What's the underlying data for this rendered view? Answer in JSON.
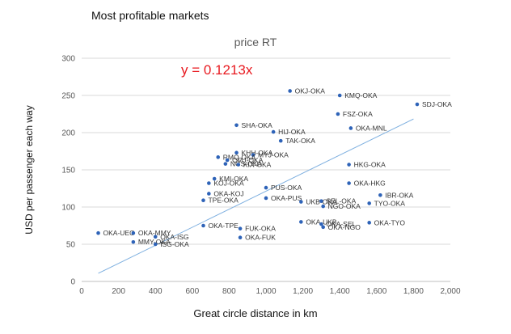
{
  "page": {
    "heading": "Most profitable markets"
  },
  "chart_data": {
    "type": "scatter",
    "title": "price RT",
    "xlabel": "Great circle distance in km",
    "ylabel": "USD per passenger each way",
    "xlim": [
      0,
      2000
    ],
    "ylim": [
      0,
      300
    ],
    "xticks": [
      "0",
      "200",
      "400",
      "600",
      "800",
      "1,000",
      "1,200",
      "1,400",
      "1,600",
      "1,800",
      "2,000"
    ],
    "yticks": [
      "0",
      "50",
      "100",
      "150",
      "200",
      "250",
      "300"
    ],
    "grid": "horizontal",
    "trendline": {
      "equation": "y = 0.1213x",
      "slope": 0.1213,
      "x_range": [
        90,
        1800
      ]
    },
    "marker_color": "#2e63b8",
    "trend_color": "#7fb0e0",
    "points": [
      {
        "label": "OKJ-OKA",
        "x": 1130,
        "y": 256
      },
      {
        "label": "KMQ-OKA",
        "x": 1400,
        "y": 250
      },
      {
        "label": "SDJ-OKA",
        "x": 1820,
        "y": 238
      },
      {
        "label": "FSZ-OKA",
        "x": 1390,
        "y": 225
      },
      {
        "label": "SHA-OKA",
        "x": 840,
        "y": 210
      },
      {
        "label": "OKA-MNL",
        "x": 1460,
        "y": 206
      },
      {
        "label": "HIJ-OKA",
        "x": 1040,
        "y": 201
      },
      {
        "label": "TAK-OKA",
        "x": 1080,
        "y": 189
      },
      {
        "label": "KHH-OKA",
        "x": 840,
        "y": 173
      },
      {
        "label": "MYJ-OKA",
        "x": 930,
        "y": 170
      },
      {
        "label": "RMQ-OKA",
        "x": 740,
        "y": 167
      },
      {
        "label": "CMJ-OKA",
        "x": 790,
        "y": 163
      },
      {
        "label": "NGS-OKA",
        "x": 780,
        "y": 158
      },
      {
        "label": "KIX-OKA",
        "x": 850,
        "y": 157
      },
      {
        "label": "HKG-OKA",
        "x": 1450,
        "y": 157
      },
      {
        "label": "KMI-OKA",
        "x": 720,
        "y": 138
      },
      {
        "label": "KOJ-OKA",
        "x": 690,
        "y": 132
      },
      {
        "label": "OKA-HKG",
        "x": 1450,
        "y": 132
      },
      {
        "label": "PUS-OKA",
        "x": 1000,
        "y": 126
      },
      {
        "label": "OKA-KOJ",
        "x": 690,
        "y": 118
      },
      {
        "label": "IBR-OKA",
        "x": 1620,
        "y": 116
      },
      {
        "label": "OKA-PUS",
        "x": 1000,
        "y": 112
      },
      {
        "label": "TPE-OKA",
        "x": 660,
        "y": 109
      },
      {
        "label": "UKB-OKA",
        "x": 1190,
        "y": 107
      },
      {
        "label": "SEL-OKA",
        "x": 1300,
        "y": 108
      },
      {
        "label": "TYO-OKA",
        "x": 1560,
        "y": 105
      },
      {
        "label": "NGO-OKA",
        "x": 1310,
        "y": 101
      },
      {
        "label": "OKA-UKB",
        "x": 1190,
        "y": 80
      },
      {
        "label": "OKA-TYO",
        "x": 1560,
        "y": 79
      },
      {
        "label": "OKA-SEL",
        "x": 1300,
        "y": 77
      },
      {
        "label": "OKA-NGO",
        "x": 1310,
        "y": 73
      },
      {
        "label": "OKA-TPE",
        "x": 660,
        "y": 75
      },
      {
        "label": "FUK-OKA",
        "x": 860,
        "y": 71
      },
      {
        "label": "OKA-FUK",
        "x": 860,
        "y": 59
      },
      {
        "label": "OKA-UEO",
        "x": 90,
        "y": 65
      },
      {
        "label": "OKA-MMY",
        "x": 280,
        "y": 65
      },
      {
        "label": "OKA-ISG",
        "x": 400,
        "y": 60
      },
      {
        "label": "MMY-OKA",
        "x": 280,
        "y": 53
      },
      {
        "label": "ISG-OKA",
        "x": 400,
        "y": 50
      }
    ]
  }
}
